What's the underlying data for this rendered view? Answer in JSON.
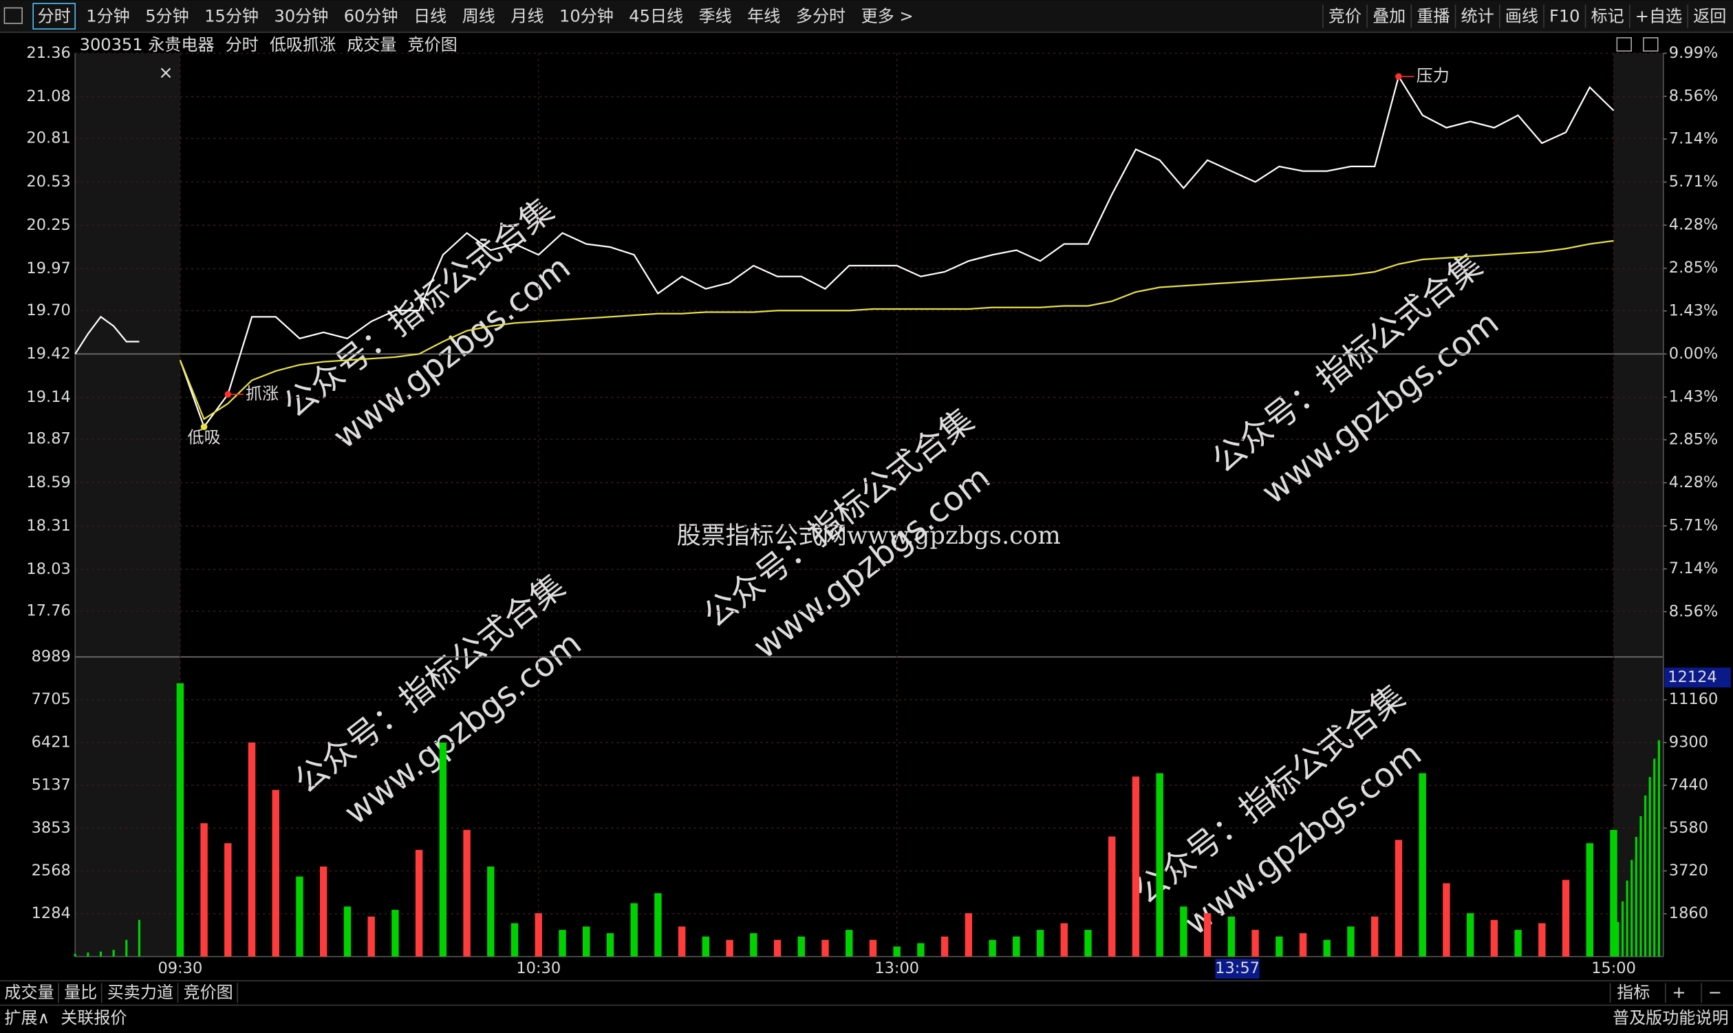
{
  "toolbar": {
    "tabs": [
      "分时",
      "1分钟",
      "5分钟",
      "15分钟",
      "30分钟",
      "60分钟",
      "日线",
      "周线",
      "月线",
      "10分钟",
      "45日线",
      "季线",
      "年线",
      "多分时",
      "更多 >"
    ],
    "active": "分时",
    "buttons": [
      "竞价",
      "叠加",
      "重播",
      "统计",
      "画线",
      "F10",
      "标记",
      "+自选",
      "返回"
    ]
  },
  "header": {
    "items": [
      "300351 永贵电器",
      "分时",
      "低吸抓涨",
      "成交量",
      "竞价图"
    ],
    "colors": [
      "#dddddd",
      "#dddddd",
      "#dddddd",
      "#e8e040",
      "#dddddd"
    ]
  },
  "chart_data": [
    {
      "type": "line",
      "name": "price",
      "ylim": [
        17.48,
        21.36
      ],
      "yticks": [
        21.36,
        21.08,
        20.81,
        20.53,
        20.25,
        19.97,
        {
          "value": 19.7,
          "label": "19.70"
        },
        19.42,
        19.14,
        18.87,
        18.59,
        18.31,
        18.03,
        17.76
      ],
      "y2lim": [
        -9.99,
        9.99
      ],
      "y2ticks": [
        {
          "value": 9.99,
          "label": "9.99%"
        },
        {
          "value": 8.56,
          "label": "8.56%"
        },
        {
          "value": 7.14,
          "label": "7.14%"
        },
        {
          "value": 5.71,
          "label": "5.71%"
        },
        {
          "value": 4.28,
          "label": "4.28%"
        },
        {
          "value": 2.85,
          "label": "2.85%"
        },
        {
          "value": 1.43,
          "label": "1.43%"
        },
        {
          "value": 0,
          "label": "0.00%"
        },
        {
          "value": -1.43,
          "label": "1.43%"
        },
        {
          "value": -2.85,
          "label": "2.85%"
        },
        {
          "value": -4.28,
          "label": "4.28%"
        },
        {
          "value": -5.71,
          "label": "5.71%"
        },
        {
          "value": -7.14,
          "label": "7.14%"
        },
        {
          "value": -8.56,
          "label": "8.56%"
        }
      ],
      "xticks": [
        "09:30",
        "10:30",
        "13:00",
        "15:00"
      ],
      "auction": {
        "x": [
          "09:15",
          "09:17",
          "09:19",
          "09:21",
          "09:23",
          "09:25"
        ],
        "values": [
          19.42,
          19.55,
          19.66,
          19.6,
          19.5,
          19.5
        ],
        "color": "#ffffff"
      },
      "x": [
        "09:30",
        "09:34",
        "09:38",
        "09:42",
        "09:46",
        "09:50",
        "09:54",
        "09:58",
        "10:02",
        "10:06",
        "10:10",
        "10:14",
        "10:18",
        "10:22",
        "10:26",
        "10:30",
        "10:34",
        "10:38",
        "10:42",
        "10:46",
        "10:50",
        "10:54",
        "10:58",
        "11:02",
        "11:06",
        "11:10",
        "11:14",
        "11:18",
        "11:22",
        "11:26",
        "11:30",
        "13:04",
        "13:08",
        "13:12",
        "13:16",
        "13:20",
        "13:24",
        "13:28",
        "13:32",
        "13:36",
        "13:40",
        "13:44",
        "13:48",
        "13:52",
        "13:56",
        "14:00",
        "14:04",
        "14:08",
        "14:12",
        "14:16",
        "14:20",
        "14:24",
        "14:28",
        "14:32",
        "14:36",
        "14:40",
        "14:44",
        "14:48",
        "14:52",
        "14:56",
        "15:00"
      ],
      "series": [
        {
          "name": "price",
          "color": "#ffffff",
          "values": [
            19.38,
            18.95,
            19.16,
            19.66,
            19.66,
            19.52,
            19.56,
            19.52,
            19.63,
            19.7,
            19.7,
            20.06,
            20.2,
            20.09,
            20.13,
            20.06,
            20.2,
            20.13,
            20.11,
            20.06,
            19.81,
            19.92,
            19.84,
            19.88,
            19.99,
            19.92,
            19.92,
            19.84,
            19.99,
            19.99,
            19.99,
            19.92,
            19.95,
            20.02,
            20.06,
            20.09,
            20.02,
            20.13,
            20.13,
            20.45,
            20.74,
            20.67,
            20.49,
            20.67,
            20.6,
            20.53,
            20.63,
            20.6,
            20.6,
            20.63,
            20.63,
            21.21,
            20.96,
            20.88,
            20.92,
            20.88,
            20.96,
            20.78,
            20.85,
            21.14,
            20.99
          ]
        },
        {
          "name": "avg",
          "color": "#e8e040",
          "values": [
            19.38,
            19.0,
            19.1,
            19.25,
            19.31,
            19.35,
            19.37,
            19.38,
            19.39,
            19.4,
            19.42,
            19.5,
            19.57,
            19.6,
            19.62,
            19.63,
            19.64,
            19.65,
            19.66,
            19.67,
            19.68,
            19.68,
            19.69,
            19.69,
            19.69,
            19.7,
            19.7,
            19.7,
            19.7,
            19.71,
            19.71,
            19.71,
            19.71,
            19.71,
            19.72,
            19.72,
            19.72,
            19.73,
            19.73,
            19.76,
            19.82,
            19.85,
            19.86,
            19.87,
            19.88,
            19.89,
            19.9,
            19.91,
            19.92,
            19.93,
            19.95,
            20.0,
            20.03,
            20.04,
            20.05,
            20.06,
            20.07,
            20.08,
            20.1,
            20.13,
            20.15
          ]
        }
      ],
      "annotations": [
        {
          "text": "低吸",
          "x": "09:34",
          "color": "#e8e040"
        },
        {
          "text": "抓涨",
          "x": "09:38",
          "color": "#ff3030"
        },
        {
          "text": "压力",
          "x": "14:24",
          "color": "#ff3030"
        }
      ]
    },
    {
      "type": "bar",
      "name": "volume",
      "ylim": [
        0,
        8989
      ],
      "yticks": [
        8989,
        7705,
        6421,
        5137,
        3853,
        2568,
        1284
      ],
      "y2lim": [
        0,
        13020
      ],
      "y2ticks": [
        11160,
        9300,
        7440,
        5580,
        3720,
        1860
      ],
      "auction_values": [
        80,
        120,
        150,
        200,
        500,
        1100
      ],
      "closing_values": [
        1500,
        2400,
        3300,
        4200,
        5200,
        6100,
        7000,
        7800,
        8600,
        9400
      ],
      "values": [
        8200,
        4000,
        3400,
        6420,
        5000,
        2400,
        2700,
        1500,
        1200,
        1400,
        3200,
        6420,
        3800,
        2700,
        1000,
        1300,
        800,
        900,
        700,
        1600,
        1900,
        900,
        600,
        500,
        700,
        500,
        600,
        500,
        800,
        500,
        300,
        400,
        600,
        1300,
        500,
        600,
        800,
        1000,
        800,
        3600,
        5400,
        5500,
        1500,
        1300,
        1200,
        800,
        600,
        700,
        500,
        900,
        1200,
        3500,
        5500,
        2200,
        1300,
        1100,
        800,
        1000,
        2300,
        3400,
        3800
      ],
      "colors": [
        "#00d200",
        "#ff3c3c",
        "#ff3c3c",
        "#ff3c3c",
        "#ff3c3c",
        "#00d200",
        "#ff3c3c",
        "#00d200",
        "#ff3c3c",
        "#00d200",
        "#ff3c3c",
        "#00d200",
        "#ff3c3c",
        "#00d200",
        "#00d200",
        "#ff3c3c",
        "#00d200",
        "#00d200",
        "#00d200",
        "#00d200",
        "#00d200",
        "#ff3c3c",
        "#00d200",
        "#ff3c3c",
        "#00d200",
        "#ff3c3c",
        "#00d200",
        "#ff3c3c",
        "#00d200",
        "#ff3c3c",
        "#00d200",
        "#00d200",
        "#ff3c3c",
        "#ff3c3c",
        "#00d200",
        "#00d200",
        "#00d200",
        "#ff3c3c",
        "#00d200",
        "#ff3c3c",
        "#ff3c3c",
        "#00d200",
        "#00d200",
        "#ff3c3c",
        "#00d200",
        "#ff3c3c",
        "#00d200",
        "#ff3c3c",
        "#00d200",
        "#00d200",
        "#ff3c3c",
        "#ff3c3c",
        "#00d200",
        "#ff3c3c",
        "#00d200",
        "#ff3c3c",
        "#00d200",
        "#ff3c3c",
        "#ff3c3c",
        "#00d200",
        "#00d200"
      ]
    }
  ],
  "cursor": {
    "time": "13:57",
    "value": 12124
  },
  "watermarks": [
    "股票指标公式网www.gpzbgs.com",
    "公众号：指标公式合集",
    "www.gpzbgs.com"
  ],
  "bottom_tabs": {
    "items": [
      "成交量",
      "量比",
      "买卖力道",
      "竞价图"
    ],
    "active": "竞价图",
    "right": [
      "指标",
      "+",
      "−"
    ]
  },
  "footer": {
    "left": [
      "扩展∧",
      "关联报价"
    ],
    "right": "普及版功能说明"
  }
}
